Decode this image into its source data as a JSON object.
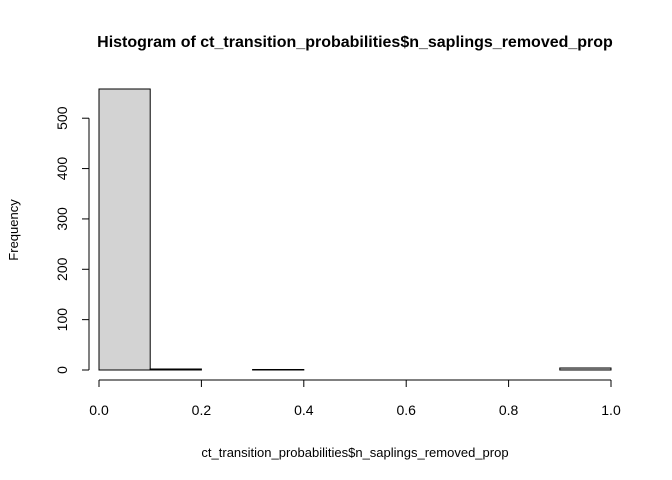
{
  "chart_data": {
    "type": "bar",
    "title": "Histogram of ct_transition_probabilities$n_saplings_removed_prop",
    "xlabel": "ct_transition_probabilities$n_saplings_removed_prop",
    "ylabel": "Frequency",
    "bins": [
      {
        "x0": 0.0,
        "x1": 0.1,
        "count": 558
      },
      {
        "x0": 0.1,
        "x1": 0.2,
        "count": 2
      },
      {
        "x0": 0.2,
        "x1": 0.3,
        "count": 0
      },
      {
        "x0": 0.3,
        "x1": 0.4,
        "count": 1
      },
      {
        "x0": 0.4,
        "x1": 0.5,
        "count": 0
      },
      {
        "x0": 0.5,
        "x1": 0.6,
        "count": 0
      },
      {
        "x0": 0.6,
        "x1": 0.7,
        "count": 0
      },
      {
        "x0": 0.7,
        "x1": 0.8,
        "count": 0
      },
      {
        "x0": 0.8,
        "x1": 0.9,
        "count": 0
      },
      {
        "x0": 0.9,
        "x1": 1.0,
        "count": 4
      }
    ],
    "xlim": [
      0,
      1
    ],
    "ylim": [
      0,
      558
    ],
    "x_ticks": [
      0.0,
      0.2,
      0.4,
      0.6,
      0.8,
      1.0
    ],
    "x_tick_labels": [
      "0.0",
      "0.2",
      "0.4",
      "0.6",
      "0.8",
      "1.0"
    ],
    "y_ticks": [
      0,
      100,
      200,
      300,
      400,
      500
    ],
    "y_tick_labels": [
      "0",
      "100",
      "200",
      "300",
      "400",
      "500"
    ],
    "bar_fill": "#d3d3d3",
    "bar_stroke": "#000000",
    "grid": false,
    "legend": "none"
  }
}
